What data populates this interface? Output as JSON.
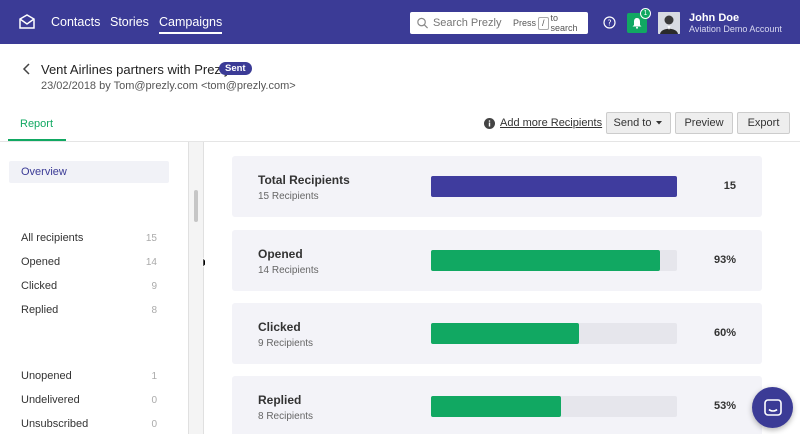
{
  "nav": {
    "links": [
      {
        "label": "Contacts"
      },
      {
        "label": "Stories"
      },
      {
        "label": "Campaigns"
      }
    ],
    "search": {
      "placeholder": "Search Prezly",
      "hint_press": "Press",
      "hint_key": "/",
      "hint_suffix": "to search"
    },
    "notifications_count": "1",
    "user": {
      "name": "John Doe",
      "account": "Aviation Demo Account"
    }
  },
  "campaign": {
    "title": "Vent Airlines partners with Prezly",
    "status": "Sent",
    "meta": "23/02/2018 by Tom@prezly.com <tom@prezly.com>"
  },
  "tabs": {
    "report": "Report"
  },
  "toolbar": {
    "add_more": "Add more Recipients",
    "send_to": "Send to",
    "preview": "Preview",
    "export": "Export"
  },
  "sidebar": {
    "overview": "Overview",
    "group1": [
      {
        "label": "All recipients",
        "count": "15"
      },
      {
        "label": "Opened",
        "count": "14"
      },
      {
        "label": "Clicked",
        "count": "9"
      },
      {
        "label": "Replied",
        "count": "8"
      }
    ],
    "group2": [
      {
        "label": "Unopened",
        "count": "1"
      },
      {
        "label": "Undelivered",
        "count": "0"
      },
      {
        "label": "Unsubscribed",
        "count": "0"
      }
    ]
  },
  "stats": [
    {
      "label": "Total Recipients",
      "sub": "15 Recipients",
      "value": "15",
      "fraction": 1.0,
      "color": "#3f3c9e"
    },
    {
      "label": "Opened",
      "sub": "14 Recipients",
      "value": "93%",
      "fraction": 0.93,
      "color": "#11a862"
    },
    {
      "label": "Clicked",
      "sub": "9 Recipients",
      "value": "60%",
      "fraction": 0.6,
      "color": "#11a862"
    },
    {
      "label": "Replied",
      "sub": "8 Recipients",
      "value": "53%",
      "fraction": 0.53,
      "color": "#11a862"
    }
  ],
  "colors": {
    "brand": "#3b3b96",
    "accent": "#11a862"
  }
}
